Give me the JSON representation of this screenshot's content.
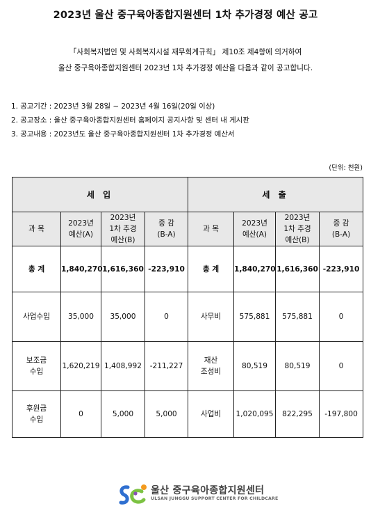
{
  "title": "2023년 울산 중구육아종합지원센터 1차 추가경정 예산 공고",
  "intro": {
    "line1": "「사회복지법인 및 사회복지시설 재무회계규칙」 제10조 제4항에 의거하여",
    "line2": "울산 중구육아종합지원센터 2023년 1차 추가경정 예산을 다음과 같이 공고합니다."
  },
  "items": [
    "1. 공고기간 : 2023년 3월 28일 ~ 2023년 4월 16일(20일 이상)",
    "2. 공고장소 : 울산 중구육아종합지원센터 홈페이지 공지사항 및 센터 내 게시판",
    "3. 공고내용 : 2023년도 울산 중구육아종합지원센터 1차 추가경정 예산서"
  ],
  "unit": "(단위: 천원)",
  "table": {
    "income_header": "세 입",
    "expense_header": "세 출",
    "columns": [
      "과 목",
      [
        "2023년",
        "예산(A)"
      ],
      [
        "2023년",
        "1차 추경",
        "예산(B)"
      ],
      [
        "증 감",
        "(B-A)"
      ]
    ],
    "total": {
      "income": {
        "subject": "총 계",
        "a": "1,840,270",
        "b": "1,616,360",
        "diff": "-223,910"
      },
      "expense": {
        "subject": "총 계",
        "a": "1,840,270",
        "b": "1,616,360",
        "diff": "-223,910"
      }
    },
    "rows": [
      {
        "income": {
          "subject": [
            "사업수입"
          ],
          "a": "35,000",
          "b": "35,000",
          "diff": "0"
        },
        "expense": {
          "subject": [
            "사무비"
          ],
          "a": "575,881",
          "b": "575,881",
          "diff": "0"
        }
      },
      {
        "income": {
          "subject": [
            "보조금",
            "수입"
          ],
          "a": "1,620,219",
          "b": "1,408,992",
          "diff": "-211,227"
        },
        "expense": {
          "subject": [
            "재산",
            "조성비"
          ],
          "a": "80,519",
          "b": "80,519",
          "diff": "0"
        }
      },
      {
        "income": {
          "subject": [
            "후원금",
            "수입"
          ],
          "a": "0",
          "b": "5,000",
          "diff": "5,000"
        },
        "expense": {
          "subject": [
            "사업비"
          ],
          "a": "1,020,095",
          "b": "822,295",
          "diff": "-197,800"
        }
      }
    ]
  },
  "logo": {
    "name": "울산 중구육아종합지원센터",
    "english": "ULSAN JUNGGU SUPPORT CENTER FOR CHILDCARE",
    "colors": {
      "blue": "#2f6fd0",
      "green": "#7cc242",
      "orange": "#f39a1e",
      "purple": "#8a4fb8"
    }
  }
}
